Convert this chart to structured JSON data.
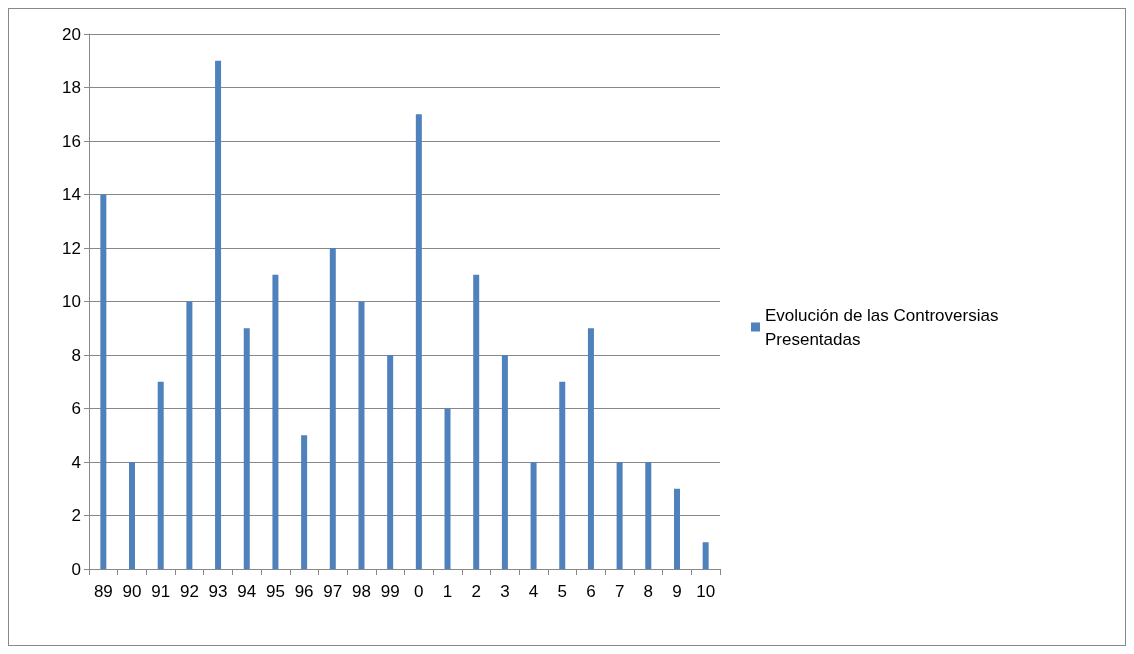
{
  "chart_data": {
    "type": "bar",
    "categories": [
      "89",
      "90",
      "91",
      "92",
      "93",
      "94",
      "95",
      "96",
      "97",
      "98",
      "99",
      "0",
      "1",
      "2",
      "3",
      "4",
      "5",
      "6",
      "7",
      "8",
      "9",
      "10"
    ],
    "series": [
      {
        "name": "Evolución de las Controversias Presentadas",
        "color": "#4f81bd",
        "values": [
          14,
          4,
          7,
          10,
          19,
          9,
          11,
          5,
          12,
          10,
          8,
          17,
          6,
          11,
          8,
          4,
          7,
          9,
          4,
          4,
          3,
          1
        ]
      }
    ],
    "ylim": [
      0,
      20
    ],
    "yticks": [
      0,
      2,
      4,
      6,
      8,
      10,
      12,
      14,
      16,
      18,
      20
    ],
    "grid": "y",
    "legend": "right"
  }
}
